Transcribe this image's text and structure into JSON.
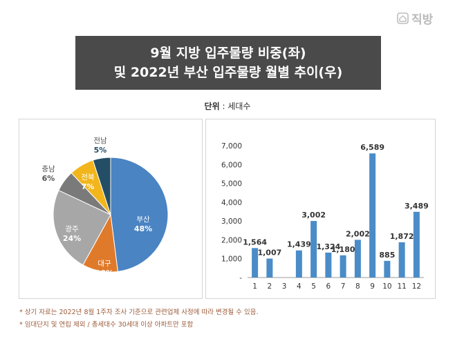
{
  "brand": {
    "name": "직방",
    "icon": "house-icon"
  },
  "title": {
    "line1": "9월 지방 입주물량 비중(좌)",
    "line2": "및 2022년 부산 입주물량 월별 추이(우)"
  },
  "unit": {
    "label": "단위",
    "sep": " : ",
    "value": "세대수"
  },
  "colors": {
    "busan": "#4a84c3",
    "daegu": "#e07a2b",
    "gwangju": "#a7a7a7",
    "chungnam": "#7a7a7a",
    "jeonbuk": "#f2b61c",
    "jeonnam": "#234e66",
    "bar": "#4a8cc8"
  },
  "chart_data": [
    {
      "type": "pie",
      "slices": [
        {
          "name": "부산",
          "value": 48,
          "label": "48%",
          "color": "#4a84c3"
        },
        {
          "name": "대구",
          "value": 10,
          "label": "10%",
          "color": "#e07a2b"
        },
        {
          "name": "광주",
          "value": 24,
          "label": "24%",
          "color": "#a7a7a7"
        },
        {
          "name": "충남",
          "value": 6,
          "label": "6%",
          "color": "#7a7a7a"
        },
        {
          "name": "전북",
          "value": 7,
          "label": "7%",
          "color": "#f2b61c"
        },
        {
          "name": "전남",
          "value": 5,
          "label": "5%",
          "color": "#234e66"
        }
      ]
    },
    {
      "type": "bar",
      "categories": [
        "1",
        "2",
        "3",
        "4",
        "5",
        "6",
        "7",
        "8",
        "9",
        "10",
        "11",
        "12"
      ],
      "values": [
        1564,
        1007,
        0,
        1439,
        3002,
        1324,
        1180,
        2002,
        6589,
        885,
        1872,
        3489
      ],
      "data_labels": [
        "1,564",
        "1,007",
        "",
        "1,439",
        "3,002",
        "1,324",
        "1,180",
        "2,002",
        "6,589",
        "885",
        "1,872",
        "3,489"
      ],
      "ylim": [
        0,
        7000
      ],
      "y_ticks": [
        "-",
        "1,000",
        "2,000",
        "3,000",
        "4,000",
        "5,000",
        "6,000",
        "7,000"
      ]
    }
  ],
  "notes": [
    "* 상기 자료는 2022년 8월 1주차 조사 기준으로 관련업체 사정에 따라 변경될 수 있음.",
    "* 임대단지 및 연립 제외 / 총세대수 30세대 이상 아파트만 포함"
  ]
}
